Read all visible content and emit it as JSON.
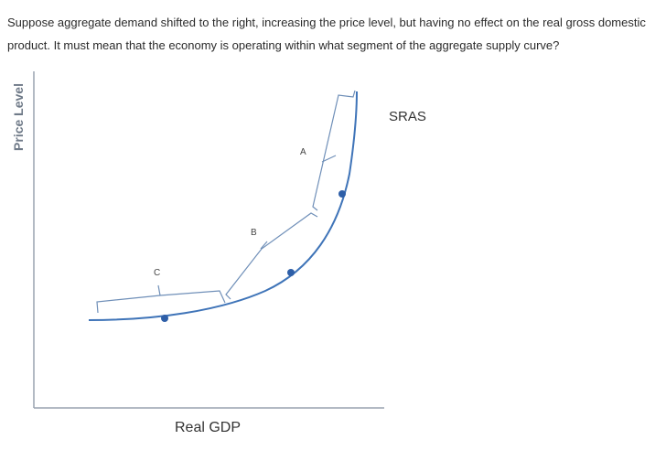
{
  "question": "Suppose aggregate demand shifted to the right, increasing the price level, but having no effect on the real gross domestic product. It must mean that the economy is operating within what segment of the aggregate supply curve?",
  "figure": {
    "y_axis_label": "Price Level",
    "x_axis_label": "Real GDP",
    "curve_label": "SRAS",
    "segments": [
      {
        "label": "A"
      },
      {
        "label": "B"
      },
      {
        "label": "C"
      }
    ]
  }
}
